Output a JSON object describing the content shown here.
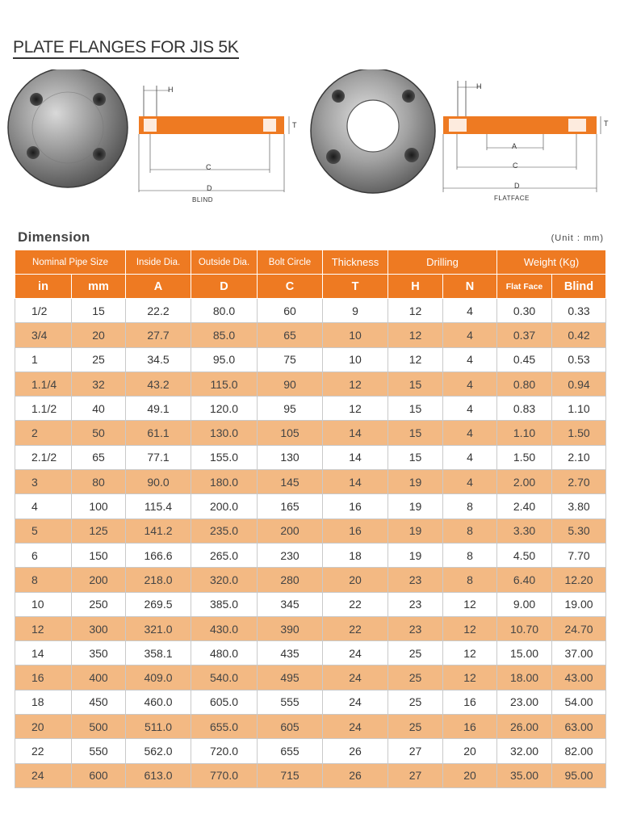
{
  "page": {
    "title": "PLATE FLANGES FOR JIS 5K",
    "section_title": "Dimension",
    "unit_note": "(Unit  :  mm)"
  },
  "figures": {
    "blind": {
      "caption": "BLIND",
      "labels": {
        "h": "H",
        "t": "T",
        "c": "C",
        "d": "D"
      }
    },
    "flatface": {
      "caption": "FLATFACE",
      "labels": {
        "h": "H",
        "t": "T",
        "a": "A",
        "c": "C",
        "d": "D"
      }
    }
  },
  "colors": {
    "accent": "#ee7a22",
    "stripe": "#f3b983",
    "steel": "#8a8a8a"
  },
  "table": {
    "group_headers": {
      "nominal_pipe_size": "Nominal Pipe Size",
      "inside_dia": "Inside Dia.",
      "outside_dia": "Outside Dia.",
      "bolt_circle": "Bolt Circle",
      "thickness": "Thickness",
      "drilling": "Drilling",
      "weight": "Weight (Kg)"
    },
    "sub_headers": {
      "in": "in",
      "mm": "mm",
      "a": "A",
      "d": "D",
      "c": "C",
      "t": "T",
      "h": "H",
      "n": "N",
      "flat_face": "Flat Face",
      "blind": "Blind"
    },
    "rows": [
      [
        "1/2",
        "15",
        "22.2",
        "80.0",
        "60",
        "9",
        "12",
        "4",
        "0.30",
        "0.33"
      ],
      [
        "3/4",
        "20",
        "27.7",
        "85.0",
        "65",
        "10",
        "12",
        "4",
        "0.37",
        "0.42"
      ],
      [
        "1",
        "25",
        "34.5",
        "95.0",
        "75",
        "10",
        "12",
        "4",
        "0.45",
        "0.53"
      ],
      [
        "1.1/4",
        "32",
        "43.2",
        "115.0",
        "90",
        "12",
        "15",
        "4",
        "0.80",
        "0.94"
      ],
      [
        "1.1/2",
        "40",
        "49.1",
        "120.0",
        "95",
        "12",
        "15",
        "4",
        "0.83",
        "1.10"
      ],
      [
        "2",
        "50",
        "61.1",
        "130.0",
        "105",
        "14",
        "15",
        "4",
        "1.10",
        "1.50"
      ],
      [
        "2.1/2",
        "65",
        "77.1",
        "155.0",
        "130",
        "14",
        "15",
        "4",
        "1.50",
        "2.10"
      ],
      [
        "3",
        "80",
        "90.0",
        "180.0",
        "145",
        "14",
        "19",
        "4",
        "2.00",
        "2.70"
      ],
      [
        "4",
        "100",
        "115.4",
        "200.0",
        "165",
        "16",
        "19",
        "8",
        "2.40",
        "3.80"
      ],
      [
        "5",
        "125",
        "141.2",
        "235.0",
        "200",
        "16",
        "19",
        "8",
        "3.30",
        "5.30"
      ],
      [
        "6",
        "150",
        "166.6",
        "265.0",
        "230",
        "18",
        "19",
        "8",
        "4.50",
        "7.70"
      ],
      [
        "8",
        "200",
        "218.0",
        "320.0",
        "280",
        "20",
        "23",
        "8",
        "6.40",
        "12.20"
      ],
      [
        "10",
        "250",
        "269.5",
        "385.0",
        "345",
        "22",
        "23",
        "12",
        "9.00",
        "19.00"
      ],
      [
        "12",
        "300",
        "321.0",
        "430.0",
        "390",
        "22",
        "23",
        "12",
        "10.70",
        "24.70"
      ],
      [
        "14",
        "350",
        "358.1",
        "480.0",
        "435",
        "24",
        "25",
        "12",
        "15.00",
        "37.00"
      ],
      [
        "16",
        "400",
        "409.0",
        "540.0",
        "495",
        "24",
        "25",
        "12",
        "18.00",
        "43.00"
      ],
      [
        "18",
        "450",
        "460.0",
        "605.0",
        "555",
        "24",
        "25",
        "16",
        "23.00",
        "54.00"
      ],
      [
        "20",
        "500",
        "511.0",
        "655.0",
        "605",
        "24",
        "25",
        "16",
        "26.00",
        "63.00"
      ],
      [
        "22",
        "550",
        "562.0",
        "720.0",
        "655",
        "26",
        "27",
        "20",
        "32.00",
        "82.00"
      ],
      [
        "24",
        "600",
        "613.0",
        "770.0",
        "715",
        "26",
        "27",
        "20",
        "35.00",
        "95.00"
      ]
    ]
  }
}
